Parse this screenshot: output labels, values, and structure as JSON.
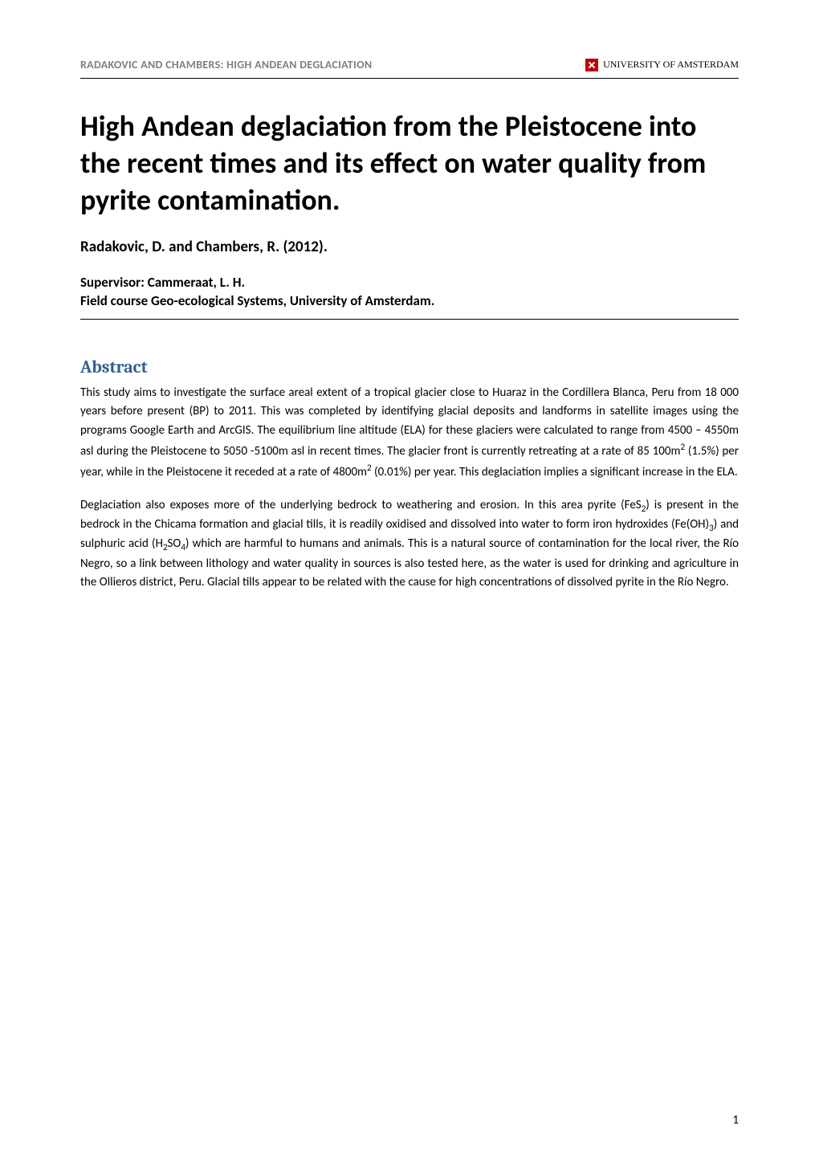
{
  "runningHeader": {
    "left": "RADAKOVIC AND CHAMBERS: HIGH ANDEAN DEGLACIATION",
    "logoColor": "#bf0000",
    "institution": "UNIVERSITY OF AMSTERDAM"
  },
  "title": "High Andean deglaciation from the Pleistocene into the recent times and its effect on water quality from pyrite contamination.",
  "authors": "Radakovic, D. and Chambers, R. (2012).",
  "supervisor": "Supervisor: Cammeraat, L. H.",
  "fieldcourse": "Field course Geo-ecological Systems, University of Amsterdam.",
  "section": {
    "heading": "Abstract",
    "headingColor": "#365f91"
  },
  "abstract": {
    "p1_pre": "This study aims to investigate the surface areal extent of a tropical glacier close to Huaraz in the Cordillera Blanca, Peru from 18 000 years before present (BP) to 2011. This was completed by identifying glacial deposits and landforms in satellite images using the programs Google Earth and ArcGIS.  The equilibrium line altitude (ELA) for these glaciers were calculated to range from 4500 – 4550m asl during the Pleistocene to 5050 -5100m asl in recent times. The glacier front is currently retreating at a rate of 85 100m",
    "p1_mid": " (1.5%) per year, while in the Pleistocene it receded at a rate of 4800m",
    "p1_post": " (0.01%) per year. This deglaciation implies a significant increase in the ELA.",
    "p2_a": "Deglaciation also exposes more of the underlying bedrock to weathering and erosion.  In this area pyrite (FeS",
    "p2_b": ") is present in the bedrock in the Chicama formation and glacial tills, it is readily oxidised and dissolved into water to form iron hydroxides (Fe(OH)",
    "p2_c": ") and sulphuric acid (H",
    "p2_d": "SO",
    "p2_e": ") which are harmful to humans and animals.  This is a natural source of contamination for the local river, the Río Negro, so a link between lithology and water quality in sources is also tested here, as the water is used for drinking and agriculture in the Ollieros district, Peru. Glacial tills appear to be related with the cause for high concentrations of dissolved pyrite in the Río Negro."
  },
  "pageNumber": "1"
}
